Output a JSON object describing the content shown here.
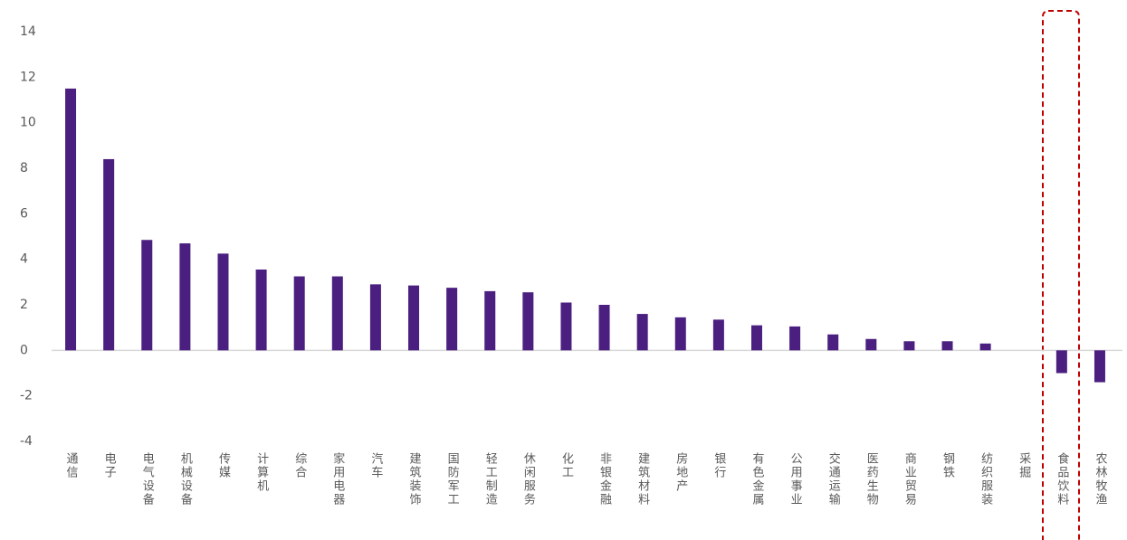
{
  "chart_data": {
    "type": "bar",
    "categories": [
      "通信",
      "电子",
      "电气设备",
      "机械设备",
      "传媒",
      "计算机",
      "综合",
      "家用电器",
      "汽车",
      "建筑装饰",
      "国防军工",
      "轻工制造",
      "休闲服务",
      "化工",
      "非银金融",
      "建筑材料",
      "房地产",
      "银行",
      "有色金属",
      "公用事业",
      "交通运输",
      "医药生物",
      "商业贸易",
      "钢铁",
      "纺织服装",
      "采掘",
      "食品饮料",
      "农林牧渔"
    ],
    "values": [
      11.5,
      8.4,
      4.85,
      4.7,
      4.25,
      3.55,
      3.25,
      3.25,
      2.9,
      2.85,
      2.75,
      2.6,
      2.55,
      2.1,
      2.0,
      1.6,
      1.45,
      1.35,
      1.1,
      1.05,
      0.7,
      0.5,
      0.4,
      0.4,
      0.3,
      0,
      -1.0,
      -1.4
    ],
    "color": "#4b1f80",
    "ylim": [
      -4,
      14
    ],
    "yticks": [
      -4,
      -2,
      0,
      2,
      4,
      6,
      8,
      10,
      12,
      14
    ],
    "grid": false
  }
}
